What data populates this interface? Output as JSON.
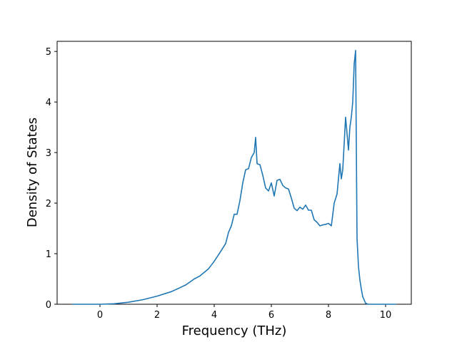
{
  "chart_data": {
    "type": "line",
    "title": "",
    "xlabel": "Frequency (THz)",
    "ylabel": "Density of States",
    "xlim": [
      -1.5,
      10.9
    ],
    "ylim": [
      0,
      5.2
    ],
    "xticks": [
      0,
      2,
      4,
      6,
      8,
      10
    ],
    "yticks": [
      0,
      1,
      2,
      3,
      4,
      5
    ],
    "grid": false,
    "line_color": "#1f77b4",
    "series": [
      {
        "x": [
          -0.95,
          0.0,
          0.5,
          1.0,
          1.5,
          2.0,
          2.5,
          3.0,
          3.3,
          3.5,
          3.8,
          4.0,
          4.2,
          4.4,
          4.5,
          4.6,
          4.7,
          4.8,
          4.9,
          5.0,
          5.1,
          5.2,
          5.3,
          5.4,
          5.45,
          5.5,
          5.6,
          5.7,
          5.8,
          5.9,
          6.0,
          6.1,
          6.2,
          6.3,
          6.4,
          6.5,
          6.6,
          6.7,
          6.8,
          6.9,
          7.0,
          7.1,
          7.2,
          7.3,
          7.4,
          7.5,
          7.6,
          7.7,
          7.8,
          7.9,
          8.0,
          8.1,
          8.2,
          8.3,
          8.4,
          8.45,
          8.5,
          8.6,
          8.7,
          8.75,
          8.8,
          8.85,
          8.9,
          8.95,
          9.0,
          9.05,
          9.1,
          9.15,
          9.2,
          9.3,
          9.4,
          10.35
        ],
        "y": [
          0.0,
          0.0,
          0.01,
          0.04,
          0.09,
          0.16,
          0.25,
          0.38,
          0.5,
          0.56,
          0.7,
          0.85,
          1.02,
          1.2,
          1.42,
          1.55,
          1.78,
          1.78,
          2.05,
          2.4,
          2.66,
          2.68,
          2.9,
          3.0,
          3.3,
          2.78,
          2.76,
          2.55,
          2.3,
          2.24,
          2.4,
          2.14,
          2.45,
          2.47,
          2.35,
          2.3,
          2.28,
          2.1,
          1.9,
          1.85,
          1.92,
          1.88,
          1.96,
          1.86,
          1.86,
          1.67,
          1.62,
          1.55,
          1.57,
          1.58,
          1.6,
          1.55,
          2.0,
          2.18,
          2.78,
          2.48,
          2.66,
          3.7,
          3.05,
          3.5,
          3.7,
          4.0,
          4.75,
          5.02,
          1.3,
          0.75,
          0.48,
          0.3,
          0.15,
          0.02,
          0.0,
          0.0
        ]
      }
    ]
  }
}
